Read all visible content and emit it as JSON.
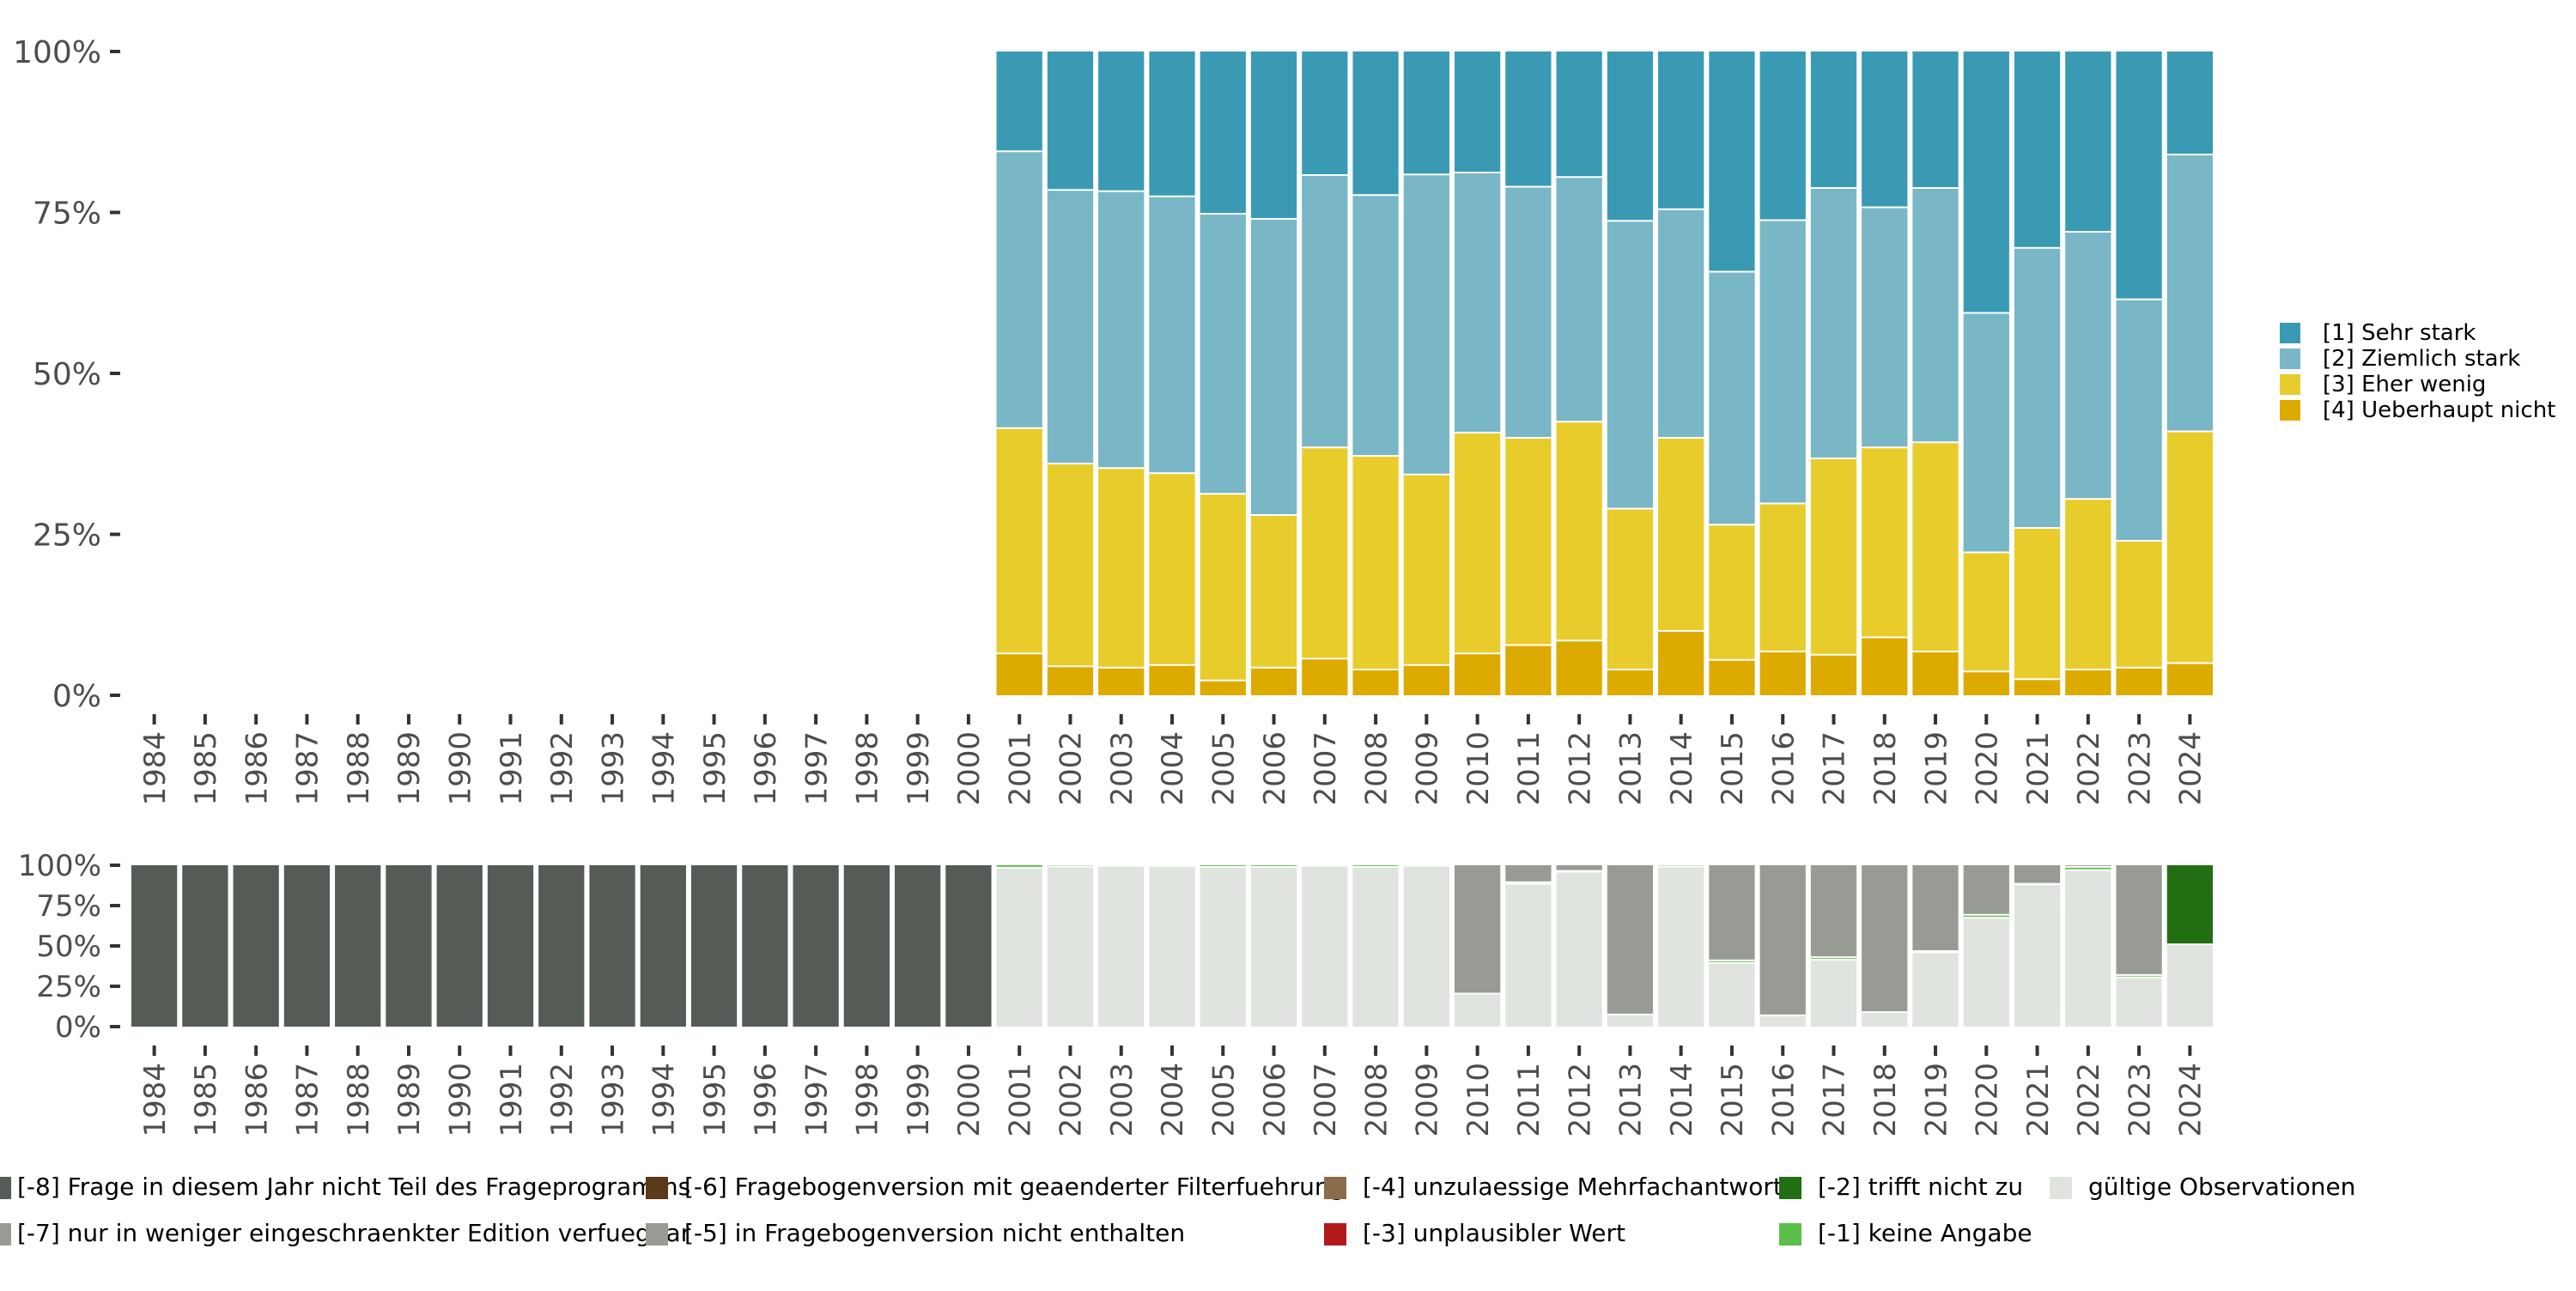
{
  "chart_data": [
    {
      "type": "bar",
      "stacked": true,
      "categories": [
        "1984",
        "1985",
        "1986",
        "1987",
        "1988",
        "1989",
        "1990",
        "1991",
        "1992",
        "1993",
        "1994",
        "1995",
        "1996",
        "1997",
        "1998",
        "1999",
        "2000",
        "2001",
        "2002",
        "2003",
        "2004",
        "2005",
        "2006",
        "2007",
        "2008",
        "2009",
        "2010",
        "2011",
        "2012",
        "2013",
        "2014",
        "2015",
        "2016",
        "2017",
        "2018",
        "2019",
        "2020",
        "2021",
        "2022",
        "2023",
        "2024"
      ],
      "ylim": [
        0,
        100
      ],
      "yticks": [
        "0%",
        "25%",
        "50%",
        "75%",
        "100%"
      ],
      "series": [
        {
          "name": "[4] Ueberhaupt nicht",
          "color": "#ddaa00",
          "values": [
            null,
            null,
            null,
            null,
            null,
            null,
            null,
            null,
            null,
            null,
            null,
            null,
            null,
            null,
            null,
            null,
            null,
            6.5,
            4.5,
            4.3,
            4.7,
            2.3,
            4.3,
            5.7,
            4.0,
            4.7,
            6.5,
            7.8,
            8.5,
            4.0,
            10.0,
            5.5,
            6.8,
            6.3,
            9.0,
            6.8,
            3.7,
            2.5,
            4.0,
            4.3,
            5.0
          ]
        },
        {
          "name": "[3] Eher wenig",
          "color": "#e8cc2c",
          "values": [
            null,
            null,
            null,
            null,
            null,
            null,
            null,
            null,
            null,
            null,
            null,
            null,
            null,
            null,
            null,
            null,
            null,
            35.0,
            31.5,
            31.0,
            29.8,
            29.0,
            23.7,
            32.8,
            33.2,
            29.6,
            34.3,
            32.2,
            34.0,
            25.0,
            30.0,
            21.0,
            23.0,
            30.5,
            29.5,
            32.5,
            18.5,
            23.5,
            26.5,
            19.7,
            36.0
          ]
        },
        {
          "name": "[2] Ziemlich stark",
          "color": "#79b6c6",
          "values": [
            null,
            null,
            null,
            null,
            null,
            null,
            null,
            null,
            null,
            null,
            null,
            null,
            null,
            null,
            null,
            null,
            null,
            43.0,
            42.5,
            43.0,
            43.0,
            43.5,
            46.0,
            42.3,
            40.5,
            46.6,
            40.4,
            39.0,
            38.0,
            44.7,
            35.5,
            39.3,
            44.0,
            42.0,
            37.3,
            39.5,
            37.2,
            43.5,
            41.5,
            37.5,
            43.0
          ]
        },
        {
          "name": "[1] Sehr stark",
          "color": "#3a9ab4",
          "values": [
            null,
            null,
            null,
            null,
            null,
            null,
            null,
            null,
            null,
            null,
            null,
            null,
            null,
            null,
            null,
            null,
            null,
            15.5,
            21.5,
            21.7,
            22.5,
            25.2,
            26.0,
            19.2,
            22.3,
            19.1,
            18.8,
            21.0,
            19.5,
            26.3,
            24.5,
            34.2,
            26.2,
            21.2,
            24.2,
            21.2,
            40.6,
            30.5,
            28.0,
            38.5,
            16.0
          ]
        }
      ]
    },
    {
      "type": "bar",
      "stacked": true,
      "categories": [
        "1984",
        "1985",
        "1986",
        "1987",
        "1988",
        "1989",
        "1990",
        "1991",
        "1992",
        "1993",
        "1994",
        "1995",
        "1996",
        "1997",
        "1998",
        "1999",
        "2000",
        "2001",
        "2002",
        "2003",
        "2004",
        "2005",
        "2006",
        "2007",
        "2008",
        "2009",
        "2010",
        "2011",
        "2012",
        "2013",
        "2014",
        "2015",
        "2016",
        "2017",
        "2018",
        "2019",
        "2020",
        "2021",
        "2022",
        "2023",
        "2024"
      ],
      "ylim": [
        0,
        100
      ],
      "yticks": [
        "0%",
        "25%",
        "50%",
        "75%",
        "100%"
      ],
      "series": [
        {
          "name": "[-8] Frage in diesem Jahr nicht Teil des Frageprogramms",
          "color": "#545c55",
          "values": [
            100,
            100,
            100,
            100,
            100,
            100,
            100,
            100,
            100,
            100,
            100,
            100,
            100,
            100,
            100,
            100,
            100,
            0,
            0,
            0,
            0,
            0,
            0,
            0,
            0,
            0,
            0,
            0,
            0,
            0,
            0,
            0,
            0,
            0,
            0,
            0,
            0,
            0,
            0,
            0,
            0
          ]
        },
        {
          "name": "gültige Observationen",
          "color": "#e0e4df",
          "values": [
            0,
            0,
            0,
            0,
            0,
            0,
            0,
            0,
            0,
            0,
            0,
            0,
            0,
            0,
            0,
            0,
            0,
            98.5,
            99.3,
            99.6,
            99.5,
            99.0,
            99.0,
            99.6,
            99.0,
            99.6,
            20.5,
            88.5,
            96.0,
            7.5,
            99.3,
            39.5,
            7.0,
            41.5,
            9.0,
            46.0,
            67.5,
            88.0,
            97.0,
            30.5,
            51.0
          ]
        },
        {
          "name": "[-1] keine Angabe",
          "color": "#5bbf4a",
          "values": [
            0,
            0,
            0,
            0,
            0,
            0,
            0,
            0,
            0,
            0,
            0,
            0,
            0,
            0,
            0,
            0,
            0,
            1.5,
            0.7,
            0.4,
            0.5,
            1.0,
            1.0,
            0.4,
            1.0,
            0.4,
            0,
            1.0,
            0.5,
            0,
            0.7,
            1.5,
            0,
            1.5,
            0,
            0.8,
            1.8,
            0.5,
            2.0,
            1.5,
            0
          ]
        },
        {
          "name": "[-5] in Fragebogenversion nicht enthalten",
          "color": "#979b94",
          "values": [
            0,
            0,
            0,
            0,
            0,
            0,
            0,
            0,
            0,
            0,
            0,
            0,
            0,
            0,
            0,
            0,
            0,
            0,
            0,
            0,
            0,
            0,
            0,
            0,
            0,
            0,
            79.5,
            10.5,
            3.5,
            92.5,
            0,
            59.0,
            93.0,
            57.0,
            91.0,
            53.2,
            30.7,
            11.5,
            1.0,
            68.0,
            0
          ]
        },
        {
          "name": "[-2] trifft nicht zu",
          "color": "#226e13",
          "values": [
            0,
            0,
            0,
            0,
            0,
            0,
            0,
            0,
            0,
            0,
            0,
            0,
            0,
            0,
            0,
            0,
            0,
            0,
            0,
            0,
            0,
            0,
            0,
            0,
            0,
            0,
            0,
            0,
            0,
            0,
            0,
            0,
            0,
            0,
            0,
            0,
            0,
            0,
            0,
            0,
            49.0
          ]
        }
      ]
    }
  ],
  "legend_top": [
    {
      "label": "[1] Sehr stark",
      "color": "#3a9ab4"
    },
    {
      "label": "[2] Ziemlich stark",
      "color": "#79b6c6"
    },
    {
      "label": "[3] Eher wenig",
      "color": "#e8cc2c"
    },
    {
      "label": "[4] Ueberhaupt nicht",
      "color": "#ddaa00"
    }
  ],
  "legend_bottom": [
    {
      "label": "[-8] Frage in diesem Jahr nicht Teil des Frageprogramms",
      "color": "#545c55"
    },
    {
      "label": "[-7] nur in weniger eingeschraenkter Edition verfuegbar",
      "color": "#979b94"
    },
    {
      "label": "[-6] Fragebogenversion mit geaenderter Filterfuehrung",
      "color": "#5b3a1a"
    },
    {
      "label": "[-5] in Fragebogenversion nicht enthalten",
      "color": "#979b94"
    },
    {
      "label": "[-4] unzulaessige Mehrfachantwort",
      "color": "#8b6b4a"
    },
    {
      "label": "[-3] unplausibler Wert",
      "color": "#b01a1a"
    },
    {
      "label": "[-2] trifft nicht zu",
      "color": "#226e13"
    },
    {
      "label": "[-1] keine Angabe",
      "color": "#5bbf4a"
    },
    {
      "label": "gültige Observationen",
      "color": "#e0e4df"
    }
  ]
}
